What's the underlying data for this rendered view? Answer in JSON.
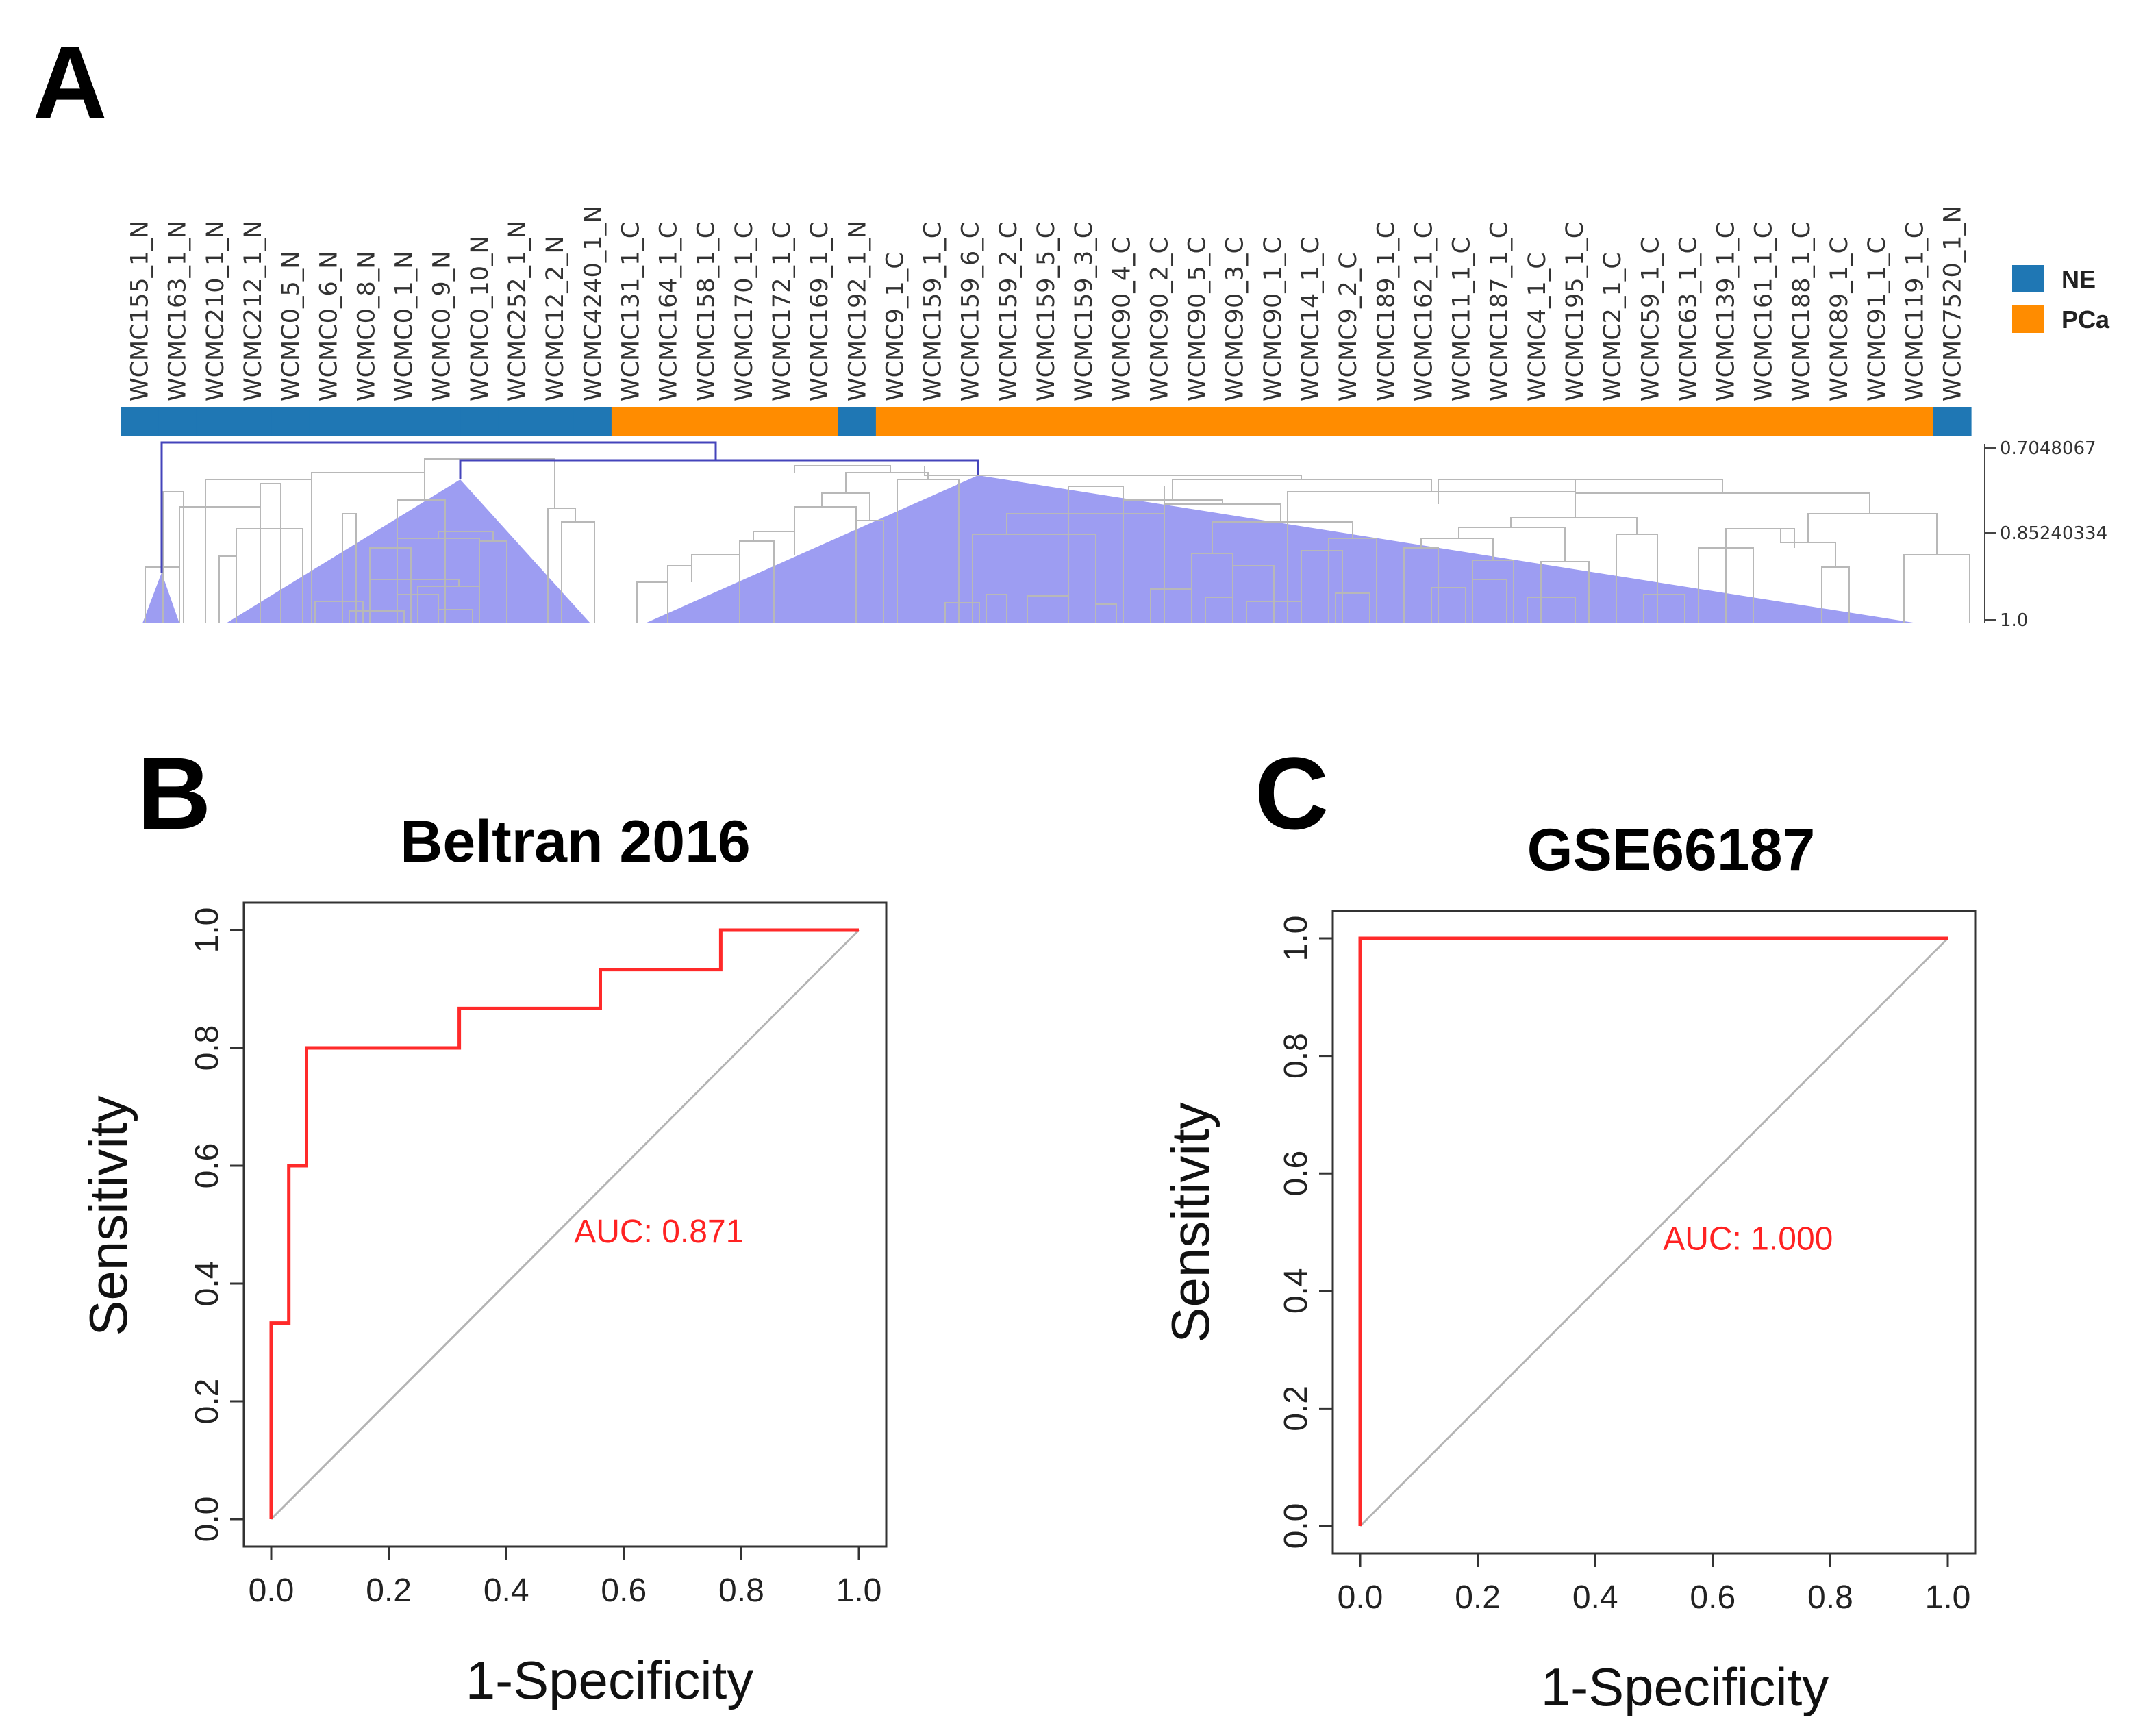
{
  "panels": {
    "a": {
      "letter": "A",
      "samples": [
        {
          "label": "WCMC155_1_N",
          "group": "NE"
        },
        {
          "label": "WCMC163_1_N",
          "group": "NE"
        },
        {
          "label": "WCMC210_1_N",
          "group": "NE"
        },
        {
          "label": "WCMC212_1_N",
          "group": "NE"
        },
        {
          "label": "WCMC0_5_N",
          "group": "NE"
        },
        {
          "label": "WCMC0_6_N",
          "group": "NE"
        },
        {
          "label": "WCMC0_8_N",
          "group": "NE"
        },
        {
          "label": "WCMC0_1_N",
          "group": "NE"
        },
        {
          "label": "WCMC0_9_N",
          "group": "NE"
        },
        {
          "label": "WCMC0_10_N",
          "group": "NE"
        },
        {
          "label": "WCMC252_1_N",
          "group": "NE"
        },
        {
          "label": "WCMC12_2_N",
          "group": "NE"
        },
        {
          "label": "WCMC4240_1_N",
          "group": "NE"
        },
        {
          "label": "WCMC131_1_C",
          "group": "PCa"
        },
        {
          "label": "WCMC164_1_C",
          "group": "PCa"
        },
        {
          "label": "WCMC158_1_C",
          "group": "PCa"
        },
        {
          "label": "WCMC170_1_C",
          "group": "PCa"
        },
        {
          "label": "WCMC172_1_C",
          "group": "PCa"
        },
        {
          "label": "WCMC169_1_C",
          "group": "PCa"
        },
        {
          "label": "WCMC192_1_N",
          "group": "NE"
        },
        {
          "label": "WCMC9_1_C",
          "group": "PCa"
        },
        {
          "label": "WCMC159_1_C",
          "group": "PCa"
        },
        {
          "label": "WCMC159_6_C",
          "group": "PCa"
        },
        {
          "label": "WCMC159_2_C",
          "group": "PCa"
        },
        {
          "label": "WCMC159_5_C",
          "group": "PCa"
        },
        {
          "label": "WCMC159_3_C",
          "group": "PCa"
        },
        {
          "label": "WCMC90_4_C",
          "group": "PCa"
        },
        {
          "label": "WCMC90_2_C",
          "group": "PCa"
        },
        {
          "label": "WCMC90_5_C",
          "group": "PCa"
        },
        {
          "label": "WCMC90_3_C",
          "group": "PCa"
        },
        {
          "label": "WCMC90_1_C",
          "group": "PCa"
        },
        {
          "label": "WCMC14_1_C",
          "group": "PCa"
        },
        {
          "label": "WCMC9_2_C",
          "group": "PCa"
        },
        {
          "label": "WCMC189_1_C",
          "group": "PCa"
        },
        {
          "label": "WCMC162_1_C",
          "group": "PCa"
        },
        {
          "label": "WCMC11_1_C",
          "group": "PCa"
        },
        {
          "label": "WCMC187_1_C",
          "group": "PCa"
        },
        {
          "label": "WCMC4_1_C",
          "group": "PCa"
        },
        {
          "label": "WCMC195_1_C",
          "group": "PCa"
        },
        {
          "label": "WCMC2_1_C",
          "group": "PCa"
        },
        {
          "label": "WCMC59_1_C",
          "group": "PCa"
        },
        {
          "label": "WCMC63_1_C",
          "group": "PCa"
        },
        {
          "label": "WCMC139_1_C",
          "group": "PCa"
        },
        {
          "label": "WCMC161_1_C",
          "group": "PCa"
        },
        {
          "label": "WCMC188_1_C",
          "group": "PCa"
        },
        {
          "label": "WCMC89_1_C",
          "group": "PCa"
        },
        {
          "label": "WCMC91_1_C",
          "group": "PCa"
        },
        {
          "label": "WCMC119_1_C",
          "group": "PCa"
        },
        {
          "label": "WCMC7520_1_N",
          "group": "NE"
        }
      ],
      "legend": [
        {
          "label": "NE",
          "color": "#1f77b4"
        },
        {
          "label": "PCa",
          "color": "#ff8c00"
        }
      ],
      "height_axis": {
        "ticks": [
          "0.7048067",
          "0.85240334",
          "1.0"
        ],
        "values": [
          0.7048067,
          0.85240334,
          1.0
        ]
      },
      "colors": {
        "tree": "#b8b8b8",
        "top_branch": "#4444bb",
        "collapsed_fill": "#9d9df2"
      }
    },
    "b": {
      "letter": "B",
      "chart_data": {
        "type": "line",
        "title": "Beltran 2016",
        "xlabel": "1-Specificity",
        "ylabel": "Sensitivity",
        "xlim": [
          0,
          1
        ],
        "ylim": [
          0,
          1
        ],
        "x_ticks": [
          "0.0",
          "0.2",
          "0.4",
          "0.6",
          "0.8",
          "1.0"
        ],
        "y_ticks": [
          "0.0",
          "0.2",
          "0.4",
          "0.6",
          "0.8",
          "1.0"
        ],
        "series": [
          {
            "name": "ROC",
            "color": "#ff2a2a",
            "x": [
              0,
              0,
              0.03,
              0.03,
              0.06,
              0.06,
              0.32,
              0.32,
              0.56,
              0.56,
              0.765,
              0.765,
              1
            ],
            "y": [
              0,
              0.333,
              0.333,
              0.6,
              0.6,
              0.8,
              0.8,
              0.867,
              0.867,
              0.933,
              0.933,
              1,
              1
            ]
          },
          {
            "name": "reference",
            "color": "#b4b4b4",
            "x": [
              0,
              1
            ],
            "y": [
              0,
              1
            ]
          }
        ],
        "annotation": "AUC: 0.871",
        "annotation_pos": {
          "x": 0.66,
          "y": 0.47
        }
      }
    },
    "c": {
      "letter": "C",
      "chart_data": {
        "type": "line",
        "title": "GSE66187",
        "xlabel": "1-Specificity",
        "ylabel": "Sensitivity",
        "xlim": [
          0,
          1
        ],
        "ylim": [
          0,
          1
        ],
        "x_ticks": [
          "0.0",
          "0.2",
          "0.4",
          "0.6",
          "0.8",
          "1.0"
        ],
        "y_ticks": [
          "0.0",
          "0.2",
          "0.4",
          "0.6",
          "0.8",
          "1.0"
        ],
        "series": [
          {
            "name": "ROC",
            "color": "#ff2a2a",
            "x": [
              0,
              0,
              1
            ],
            "y": [
              0,
              1,
              1
            ]
          },
          {
            "name": "reference",
            "color": "#b4b4b4",
            "x": [
              0,
              1
            ],
            "y": [
              0,
              1
            ]
          }
        ],
        "annotation": "AUC: 1.000",
        "annotation_pos": {
          "x": 0.66,
          "y": 0.47
        }
      }
    }
  }
}
